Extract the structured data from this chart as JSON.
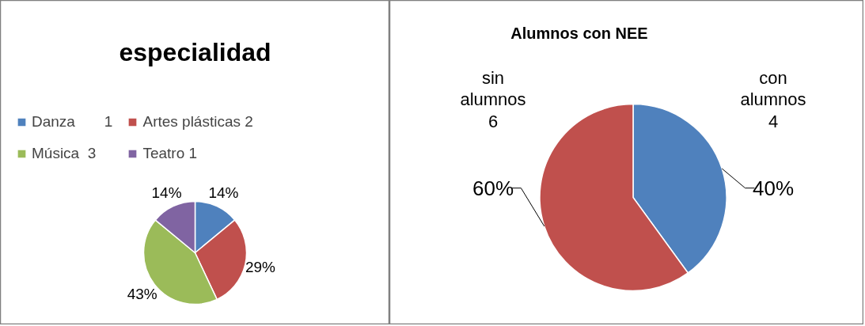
{
  "chart_data": [
    {
      "type": "pie",
      "title": "especialidad",
      "categories": [
        "Danza       1",
        "Artes plásticas 2",
        "Música  3",
        "Teatro 1"
      ],
      "values": [
        14,
        29,
        43,
        14
      ],
      "value_labels": [
        "14%",
        "29%",
        "43%",
        "14%"
      ],
      "colors": [
        "#4f81bd",
        "#c0504d",
        "#9bbb59",
        "#8064a2"
      ],
      "legend": "top"
    },
    {
      "type": "pie",
      "title": "Alumnos con NEE",
      "categories": [
        "con alumnos 4",
        "sin alumnos 6"
      ],
      "values": [
        40,
        60
      ],
      "value_labels": [
        "40%",
        "60%"
      ],
      "colors": [
        "#4f81bd",
        "#c0504d"
      ],
      "legend": false
    }
  ]
}
